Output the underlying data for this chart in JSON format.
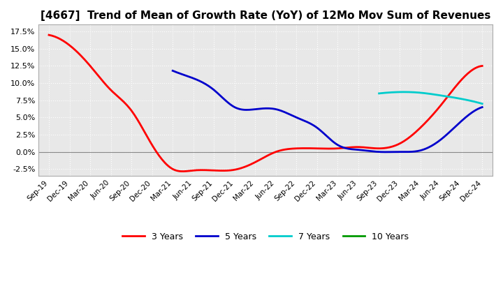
{
  "title": "[4667]  Trend of Mean of Growth Rate (YoY) of 12Mo Mov Sum of Revenues",
  "title_fontsize": 11,
  "ylim": [
    -0.035,
    0.185
  ],
  "yticks": [
    -0.025,
    0.0,
    0.025,
    0.05,
    0.075,
    0.1,
    0.125,
    0.15,
    0.175
  ],
  "ytick_labels": [
    "-2.5%",
    "0.0%",
    "2.5%",
    "5.0%",
    "7.5%",
    "10.0%",
    "12.5%",
    "15.0%",
    "17.5%"
  ],
  "legend_labels": [
    "3 Years",
    "5 Years",
    "7 Years",
    "10 Years"
  ],
  "legend_colors": [
    "#ff0000",
    "#0000cc",
    "#00cccc",
    "#009900"
  ],
  "background_color": "#ffffff",
  "plot_bg_color": "#e8e8e8",
  "grid_color": "#ffffff",
  "x_dates": [
    "Sep-19",
    "Dec-19",
    "Mar-20",
    "Jun-20",
    "Sep-20",
    "Dec-20",
    "Mar-21",
    "Jun-21",
    "Sep-21",
    "Dec-21",
    "Mar-22",
    "Jun-22",
    "Sep-22",
    "Dec-22",
    "Mar-23",
    "Jun-23",
    "Sep-23",
    "Dec-23",
    "Mar-24",
    "Jun-24",
    "Sep-24",
    "Dec-24"
  ],
  "series_3y_x": [
    0,
    1,
    2,
    3,
    4,
    5,
    6,
    7,
    8,
    9,
    10,
    11,
    12,
    13,
    14,
    15,
    16,
    17,
    18,
    19,
    20,
    21
  ],
  "series_3y_y": [
    0.17,
    0.155,
    0.125,
    0.09,
    0.06,
    0.01,
    -0.025,
    -0.027,
    -0.027,
    -0.026,
    -0.015,
    0.0,
    0.005,
    0.005,
    0.005,
    0.007,
    0.005,
    0.012,
    0.035,
    0.068,
    0.105,
    0.125
  ],
  "series_5y_x": [
    6,
    7,
    8,
    9,
    10,
    11,
    12,
    13,
    14,
    15,
    16,
    17,
    18,
    19,
    20,
    21
  ],
  "series_5y_y": [
    0.118,
    0.107,
    0.09,
    0.065,
    0.062,
    0.062,
    0.05,
    0.035,
    0.01,
    0.003,
    0.0,
    0.0,
    0.002,
    0.018,
    0.045,
    0.065
  ],
  "series_7y_x": [
    16,
    17,
    18,
    19,
    20,
    21
  ],
  "series_7y_y": [
    0.085,
    0.087,
    0.086,
    0.082,
    0.077,
    0.07
  ],
  "series_10y_x": [],
  "series_10y_y": []
}
